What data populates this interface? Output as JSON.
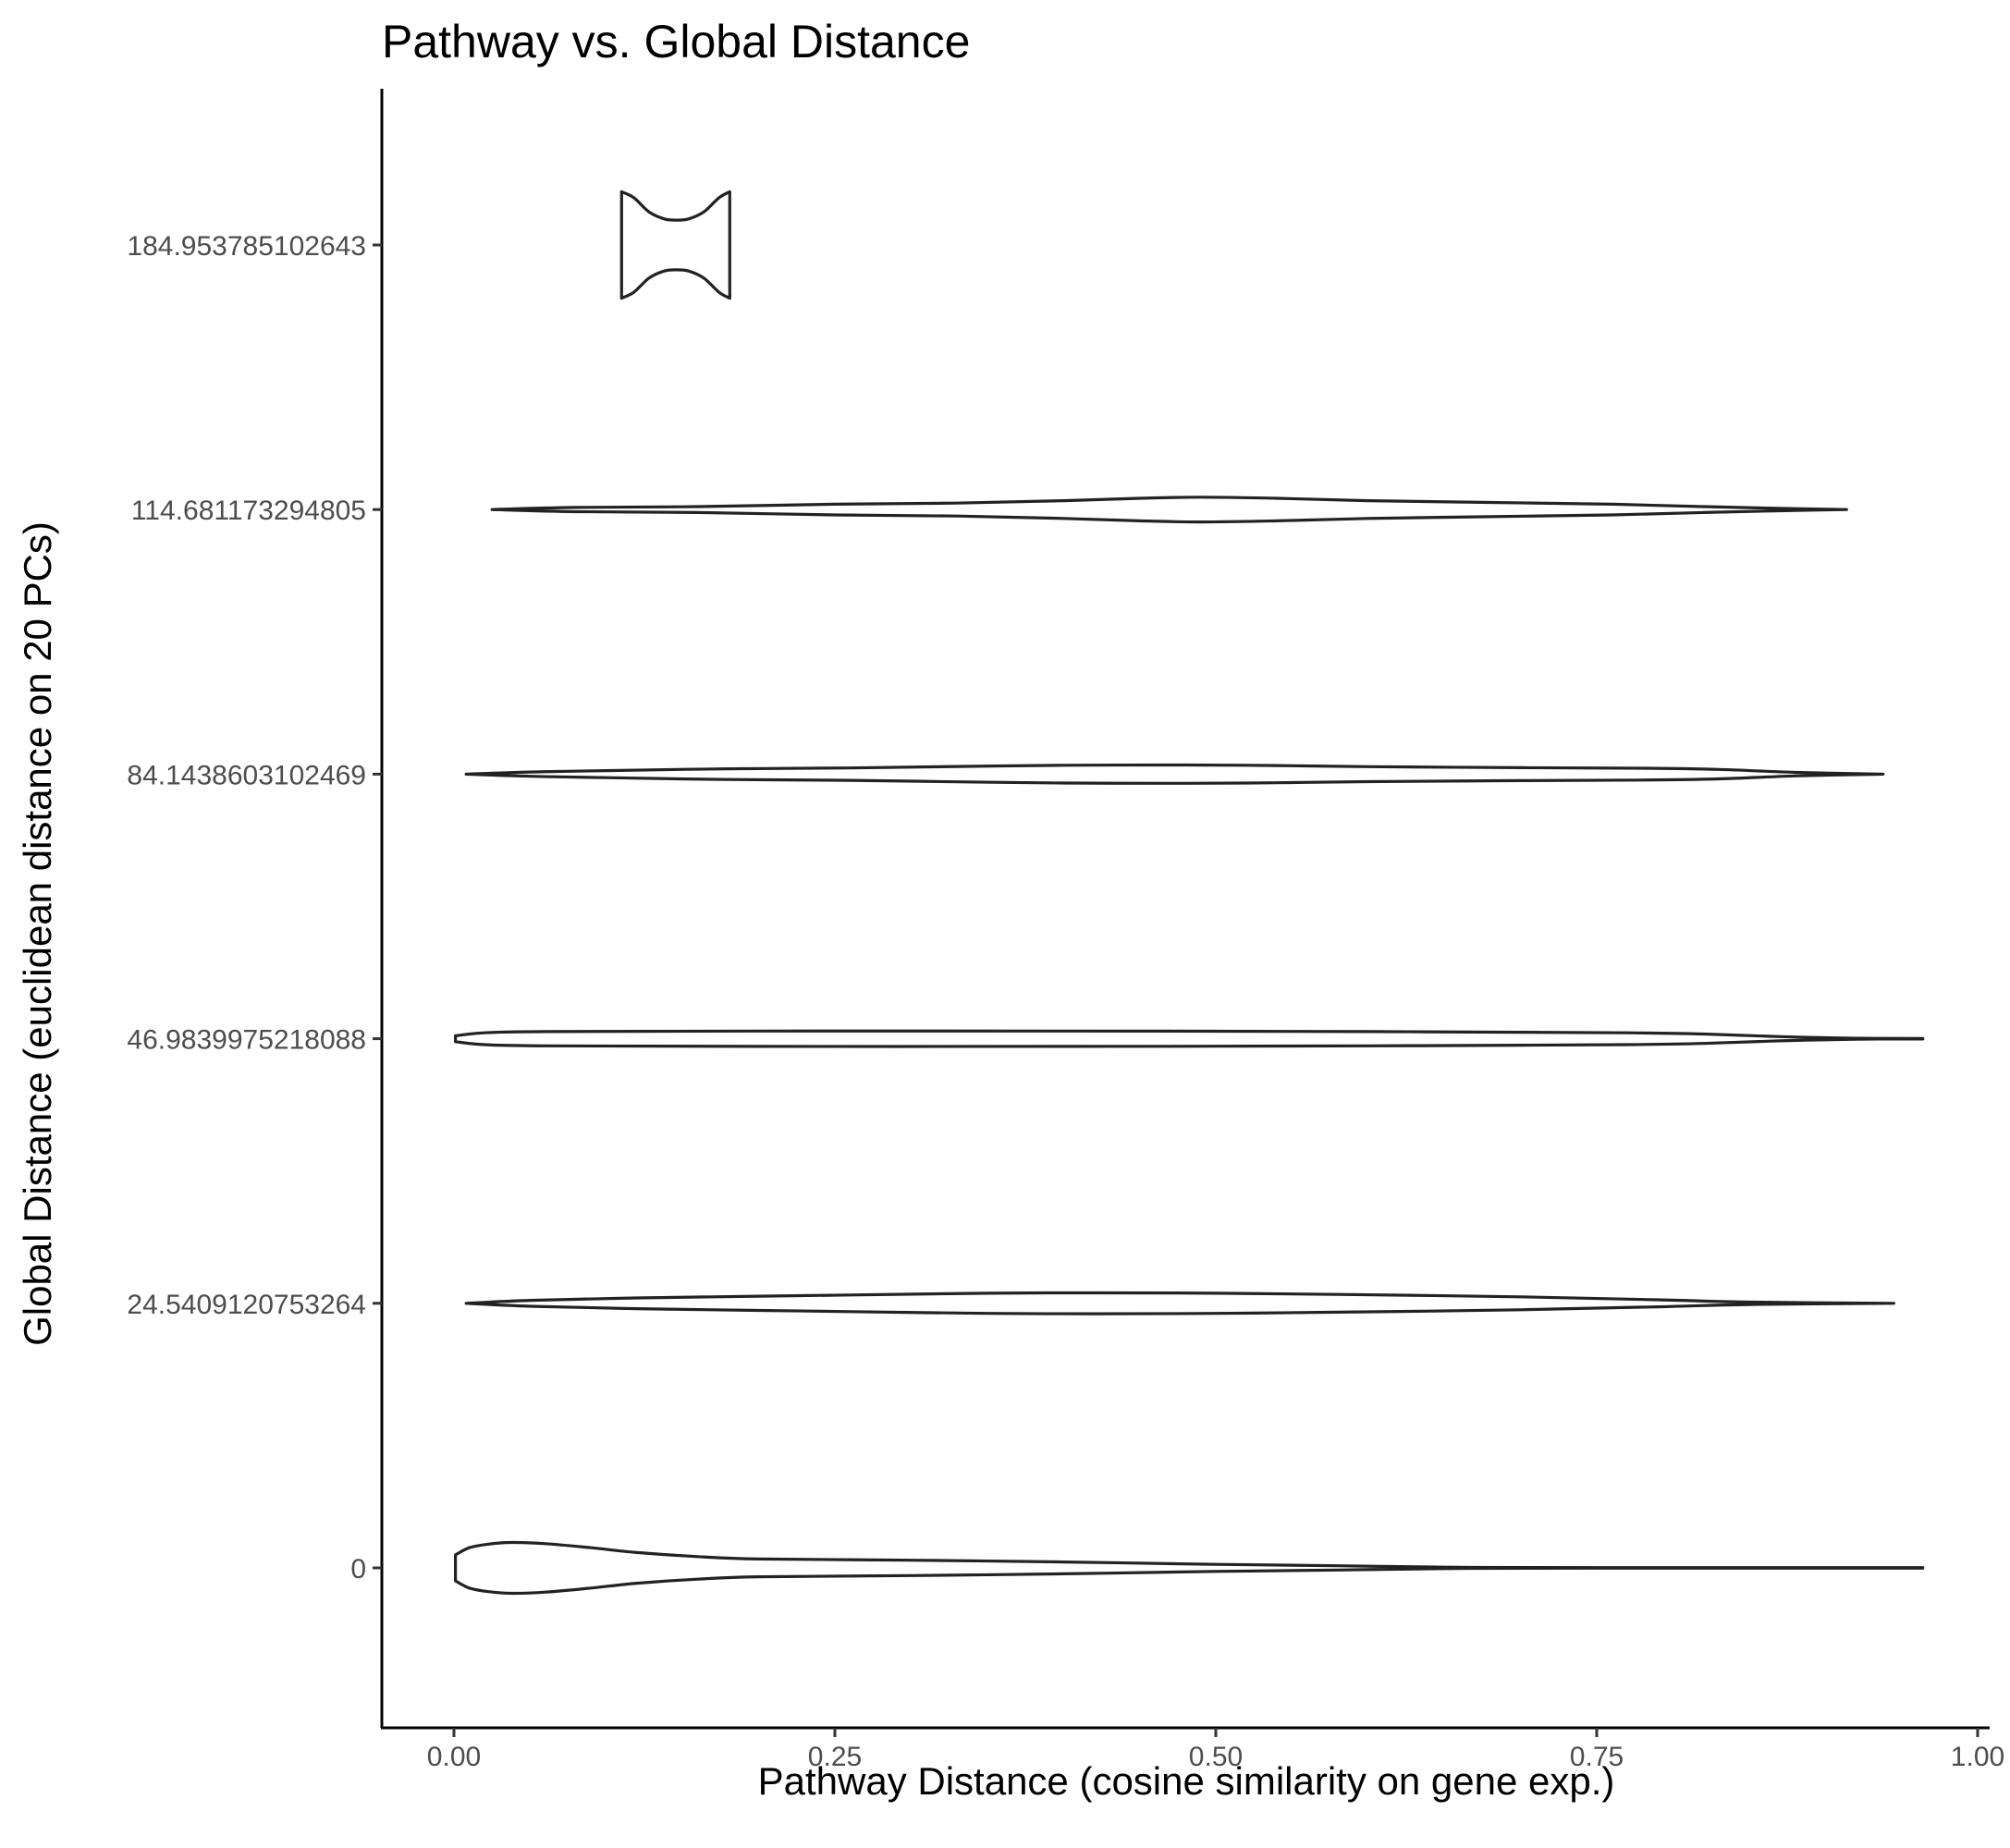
{
  "chart_data": {
    "type": "violin",
    "title": "Pathway vs. Global Distance",
    "xlabel": "Pathway Distance (cosine similarity on gene exp.)",
    "ylabel": "Global Distance (euclidean distance on 20 PCs)",
    "xlim": [
      -0.047,
      1.006
    ],
    "x_ticks": [
      {
        "value": 0.0,
        "label": "0.00"
      },
      {
        "value": 0.25,
        "label": "0.25"
      },
      {
        "value": 0.5,
        "label": "0.50"
      },
      {
        "value": 0.75,
        "label": "0.75"
      },
      {
        "value": 1.0,
        "label": "1.00"
      }
    ],
    "categories": [
      "0",
      "24.5409120753264",
      "46.9839975218088",
      "84.1438603102469",
      "114.681173294805",
      "184.953785102643"
    ],
    "grid": false,
    "violins": [
      {
        "category": "0",
        "density": [
          [
            0.001,
            0.11
          ],
          [
            0.01,
            0.17
          ],
          [
            0.022,
            0.2
          ],
          [
            0.038,
            0.215
          ],
          [
            0.06,
            0.205
          ],
          [
            0.09,
            0.17
          ],
          [
            0.12,
            0.13
          ],
          [
            0.16,
            0.095
          ],
          [
            0.2,
            0.075
          ],
          [
            0.3,
            0.065
          ],
          [
            0.4,
            0.05
          ],
          [
            0.5,
            0.03
          ],
          [
            0.58,
            0.018
          ],
          [
            0.65,
            0.006
          ],
          [
            0.75,
            0.002
          ],
          [
            0.964,
            0.002
          ]
        ]
      },
      {
        "category": "24.5409120753264",
        "density": [
          [
            0.008,
            0.0
          ],
          [
            0.05,
            0.025
          ],
          [
            0.12,
            0.045
          ],
          [
            0.2,
            0.06
          ],
          [
            0.26,
            0.07
          ],
          [
            0.35,
            0.085
          ],
          [
            0.42,
            0.088
          ],
          [
            0.5,
            0.085
          ],
          [
            0.58,
            0.075
          ],
          [
            0.7,
            0.055
          ],
          [
            0.79,
            0.03
          ],
          [
            0.85,
            0.01
          ],
          [
            0.945,
            0.0
          ]
        ]
      },
      {
        "category": "46.9839975218088",
        "density": [
          [
            0.001,
            0.025
          ],
          [
            0.02,
            0.05
          ],
          [
            0.06,
            0.06
          ],
          [
            0.2,
            0.065
          ],
          [
            0.4,
            0.065
          ],
          [
            0.5,
            0.063
          ],
          [
            0.6,
            0.06
          ],
          [
            0.7,
            0.055
          ],
          [
            0.77,
            0.05
          ],
          [
            0.82,
            0.04
          ],
          [
            0.87,
            0.018
          ],
          [
            0.92,
            0.004
          ],
          [
            0.964,
            0.002
          ]
        ]
      },
      {
        "category": "84.1438603102469",
        "density": [
          [
            0.008,
            0.0
          ],
          [
            0.05,
            0.018
          ],
          [
            0.1,
            0.03
          ],
          [
            0.18,
            0.045
          ],
          [
            0.26,
            0.052
          ],
          [
            0.33,
            0.065
          ],
          [
            0.4,
            0.075
          ],
          [
            0.48,
            0.077
          ],
          [
            0.54,
            0.073
          ],
          [
            0.6,
            0.063
          ],
          [
            0.7,
            0.055
          ],
          [
            0.78,
            0.05
          ],
          [
            0.83,
            0.04
          ],
          [
            0.88,
            0.015
          ],
          [
            0.938,
            0.0
          ]
        ]
      },
      {
        "category": "114.681173294805",
        "density": [
          [
            0.025,
            0.0
          ],
          [
            0.08,
            0.018
          ],
          [
            0.16,
            0.025
          ],
          [
            0.25,
            0.045
          ],
          [
            0.33,
            0.055
          ],
          [
            0.4,
            0.075
          ],
          [
            0.45,
            0.095
          ],
          [
            0.49,
            0.105
          ],
          [
            0.54,
            0.095
          ],
          [
            0.6,
            0.075
          ],
          [
            0.68,
            0.06
          ],
          [
            0.76,
            0.045
          ],
          [
            0.82,
            0.025
          ],
          [
            0.87,
            0.01
          ],
          [
            0.914,
            0.0
          ]
        ]
      },
      {
        "category": "184.953785102643",
        "density": [
          [
            0.11,
            0.45
          ],
          [
            0.118,
            0.4
          ],
          [
            0.128,
            0.28
          ],
          [
            0.138,
            0.22
          ],
          [
            0.146,
            0.21
          ],
          [
            0.154,
            0.22
          ],
          [
            0.164,
            0.28
          ],
          [
            0.174,
            0.4
          ],
          [
            0.181,
            0.45
          ]
        ]
      }
    ]
  }
}
